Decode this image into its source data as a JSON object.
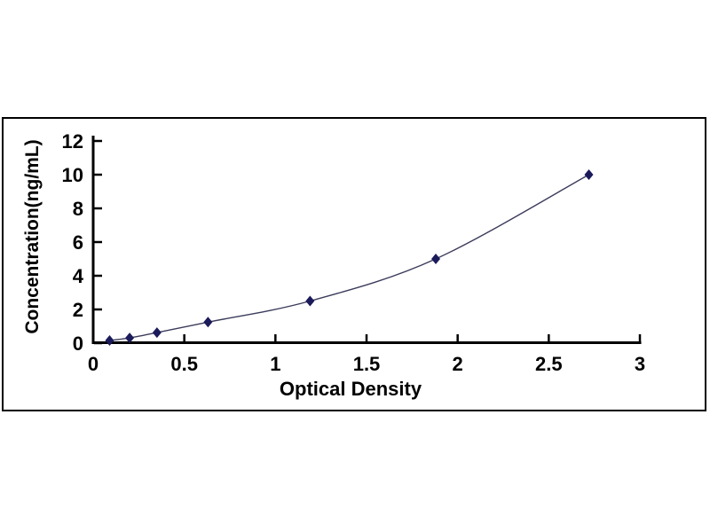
{
  "figure": {
    "background_color": "#ffffff",
    "frame_border_color": "#000000"
  },
  "chart_data": {
    "type": "line",
    "title": "",
    "xlabel": "Optical Density",
    "ylabel": "Concentration(ng/mL)",
    "x": [
      0.09,
      0.2,
      0.35,
      0.63,
      1.19,
      1.88,
      2.72
    ],
    "y": [
      0.156,
      0.312,
      0.625,
      1.25,
      2.5,
      5,
      10
    ],
    "xlim": [
      0,
      3
    ],
    "ylim": [
      0,
      12
    ],
    "x_ticks": [
      "0",
      "0.5",
      "1",
      "1.5",
      "2",
      "2.5",
      "3"
    ],
    "x_tick_values": [
      0,
      0.5,
      1,
      1.5,
      2,
      2.5,
      3
    ],
    "y_ticks": [
      "0",
      "2",
      "4",
      "6",
      "8",
      "10",
      "12"
    ],
    "y_tick_values": [
      0,
      2,
      4,
      6,
      8,
      10,
      12
    ],
    "grid": false,
    "legend": null,
    "marker": "diamond",
    "marker_color": "#1b1a5a",
    "line_color": "#3c3c5c",
    "axis_color": "#000000"
  }
}
